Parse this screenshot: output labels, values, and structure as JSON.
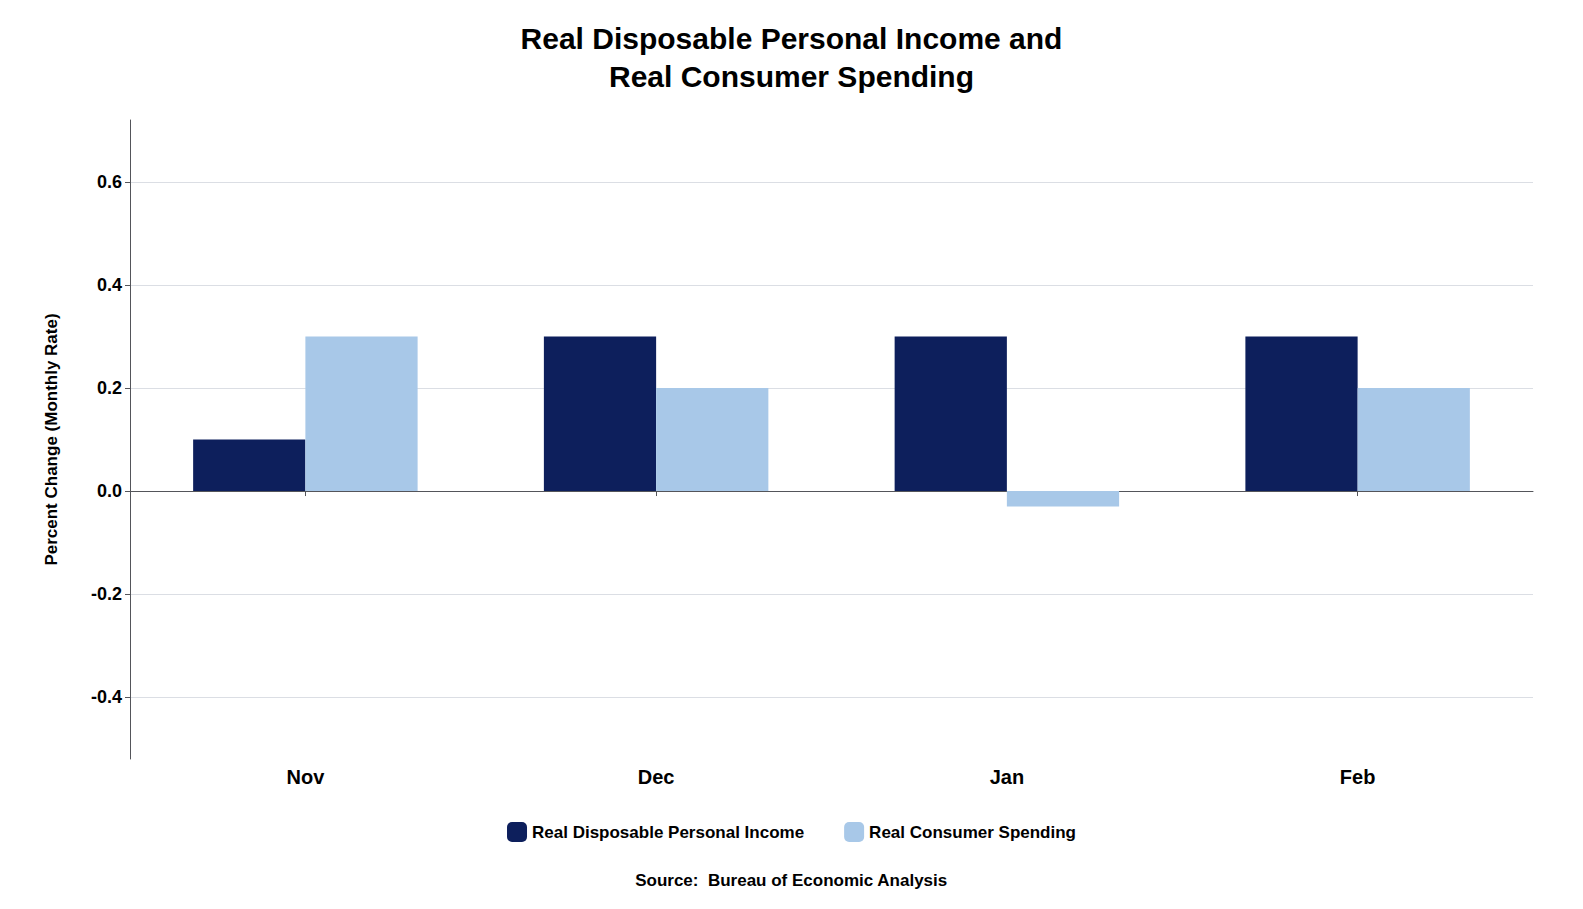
{
  "chart_data": {
    "type": "bar",
    "title": "Real Disposable Personal Income and\nReal Consumer Spending",
    "ylabel": "Percent Change (Monthly Rate)",
    "annotations": [
      "Source:  Bureau of Economic Analysis"
    ],
    "categories": [
      "Nov",
      "Dec",
      "Jan",
      "Feb"
    ],
    "series": [
      {
        "name": "Real Disposable Personal Income",
        "color": "#0d1f5c",
        "values": [
          0.1,
          0.3,
          0.3,
          0.3
        ]
      },
      {
        "name": "Real Consumer Spending",
        "color": "#a8c8e8",
        "values": [
          0.3,
          0.2,
          -0.03,
          0.2
        ]
      }
    ],
    "ylim": [
      -0.52,
      0.72
    ],
    "yticks": [
      -0.4,
      -0.2,
      {
        "value": 0,
        "label": "0.0"
      },
      0.2,
      0.4,
      0.6
    ],
    "grid": true,
    "legend": "bottom"
  }
}
